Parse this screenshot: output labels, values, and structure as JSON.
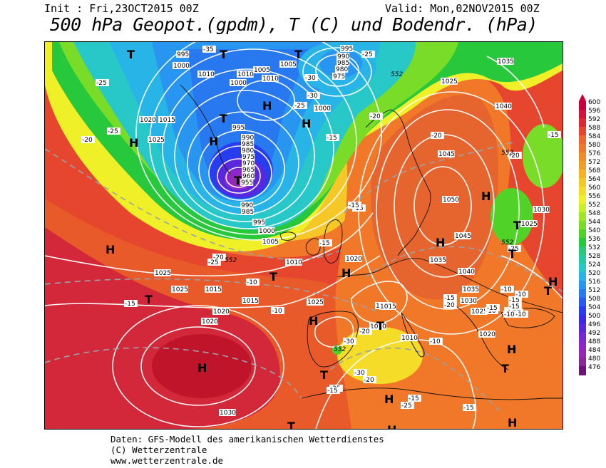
{
  "header": {
    "init": "Init : Fri,23OCT2015 00Z",
    "valid": "Valid: Mon,02NOV2015 00Z",
    "title": "500 hPa Geopot.(gpdm), T (C) und Bodendr. (hPa)"
  },
  "footer": {
    "line1": "Daten: GFS-Modell des amerikanischen Wetterdienstes",
    "line2": "(C) Wetterzentrale",
    "line3": "www.wetterzentrale.de"
  },
  "colorbar": {
    "levels": [
      "600",
      "596",
      "592",
      "588",
      "584",
      "580",
      "576",
      "572",
      "568",
      "564",
      "560",
      "556",
      "552",
      "548",
      "544",
      "540",
      "536",
      "532",
      "528",
      "524",
      "520",
      "516",
      "512",
      "508",
      "504",
      "500",
      "496",
      "492",
      "488",
      "484",
      "480",
      "476"
    ],
    "colors": [
      "#c8003c",
      "#d2143c",
      "#dc2832",
      "#e6462d",
      "#f0642d",
      "#f07828",
      "#f08c28",
      "#f0a028",
      "#f5b428",
      "#f5c828",
      "#f5dc28",
      "#f0f028",
      "#c8f028",
      "#a0e628",
      "#78dc28",
      "#50d228",
      "#28c83c",
      "#28c878",
      "#28c8a0",
      "#28c8c8",
      "#28b4e6",
      "#2896f0",
      "#2878f0",
      "#285af0",
      "#283cf0",
      "#3c28e6",
      "#5a28dc",
      "#7828d2",
      "#8c28c8",
      "#9628b4",
      "#8c2896",
      "#6e1478"
    ]
  },
  "map": {
    "pressure_labels": [
      "995",
      "1000",
      "1010",
      "1005",
      "1015",
      "1020",
      "1025",
      "1000",
      "1005",
      "1010",
      "990",
      "985",
      "980",
      "975",
      "970",
      "965",
      "960",
      "955",
      "995",
      "990",
      "985",
      "995",
      "1000",
      "1005",
      "1010",
      "995",
      "990",
      "985",
      "980",
      "975",
      "1000",
      "1010",
      "1035",
      "1025",
      "1040",
      "1045",
      "1050",
      "1030",
      "1025",
      "1045",
      "1035",
      "1040",
      "1035",
      "1030",
      "1025",
      "1020",
      "1020",
      "1015",
      "1010",
      "1015",
      "1020",
      "1025",
      "1030",
      "1025",
      "1015",
      "1020",
      "1015",
      "1025",
      "1010"
    ],
    "temp_labels": [
      "-35",
      "-25",
      "-30",
      "-25",
      "-20",
      "-25",
      "-30",
      "-25",
      "-20",
      "-15",
      "-15",
      "-20",
      "-25",
      "-15",
      "-20",
      "-15",
      "-10",
      "-15",
      "-10",
      "-15",
      "-10",
      "-20",
      "-30",
      "-30",
      "-25",
      "-20",
      "-25",
      "-15",
      "-15",
      "-15",
      "-10",
      "-20",
      "-15",
      "-15",
      "-10",
      "-10",
      "-15",
      "-15",
      "-10",
      "-10",
      "-10",
      "-15",
      "-20",
      "-25"
    ],
    "thickness_labels": [
      "552",
      "552",
      "552",
      "552",
      "552"
    ],
    "high_letter": "H",
    "low_letter": "T"
  }
}
